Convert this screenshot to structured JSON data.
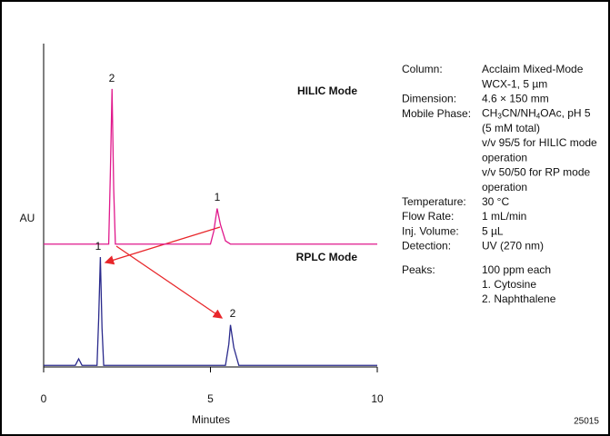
{
  "chart_data": {
    "type": "line",
    "xlabel": "Minutes",
    "ylabel": "AU",
    "xlim": [
      0,
      10
    ],
    "xticks": [
      0,
      5,
      10
    ],
    "ylim": [
      0,
      100
    ],
    "series": [
      {
        "name": "HILIC Mode",
        "color": "#e0198c",
        "x": [
          0,
          1.95,
          2.0,
          2.05,
          2.1,
          2.15,
          5.0,
          5.1,
          5.2,
          5.3,
          5.45,
          5.6,
          10
        ],
        "values": [
          38,
          38,
          60,
          86,
          55,
          38,
          38,
          42,
          49,
          44,
          39,
          38,
          38
        ]
      },
      {
        "name": "RPLC Mode",
        "color": "#2a2a8c",
        "x": [
          0,
          0.95,
          1.05,
          1.15,
          1.6,
          1.65,
          1.7,
          1.75,
          1.8,
          5.45,
          5.55,
          5.6,
          5.7,
          5.85,
          10
        ],
        "values": [
          0.5,
          0.5,
          2.5,
          0.5,
          0.5,
          15,
          34,
          12,
          0.5,
          0.5,
          7,
          13,
          6,
          0.5,
          0.5
        ]
      }
    ],
    "peak_labels": [
      "2",
      "1",
      "1",
      "2"
    ],
    "info": [
      {
        "label": "Column:",
        "lines": [
          "Acclaim Mixed-Mode",
          "WCX-1, 5 µm"
        ]
      },
      {
        "label": "Dimension:",
        "lines": [
          "4.6  × 150 mm"
        ]
      },
      {
        "label": "Mobile Phase:",
        "lines": [
          [
            "CH",
            "3",
            "CN/NH",
            "4",
            "OAc, pH 5"
          ],
          "(5 mM total)",
          "v/v 95/5 for HILIC mode",
          "operation",
          "v/v 50/50 for RP mode",
          "operation"
        ]
      },
      {
        "label": "Temperature:",
        "lines": [
          "30 °C"
        ]
      },
      {
        "label": "Flow Rate:",
        "lines": [
          "1 mL/min"
        ]
      },
      {
        "label": "Inj. Volume:",
        "lines": [
          "5 µL"
        ]
      },
      {
        "label": "Detection:",
        "lines": [
          "UV (270 nm)"
        ]
      },
      {
        "label": "Peaks:",
        "lines": [
          "100 ppm each",
          "1. Cytosine",
          "2. Naphthalene"
        ]
      }
    ],
    "figure_id": "25015"
  }
}
